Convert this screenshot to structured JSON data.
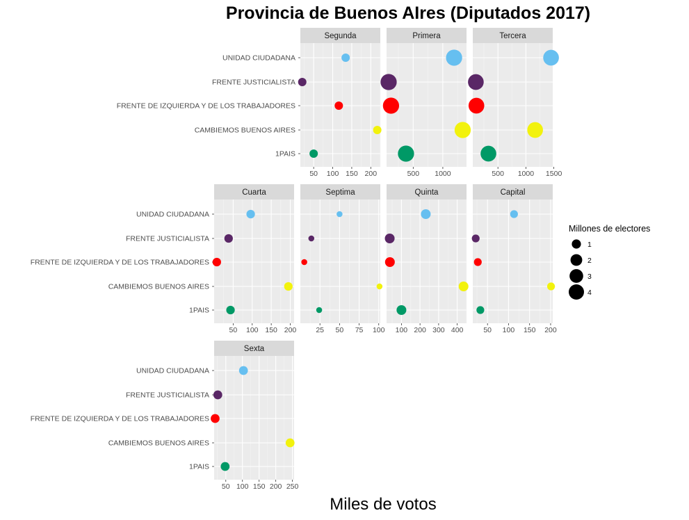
{
  "chart_data": {
    "type": "scatter",
    "title": "Provincia de Buenos AIres (Diputados 2017)",
    "xlabel": "Miles de votos",
    "ylabel": "",
    "categories": [
      "1PAIS",
      "CAMBIEMOS BUENOS AIRES",
      "FRENTE DE IZQUIERDA Y DE LOS TRABAJADORES",
      "FRENTE JUSTICIALISTA",
      "UNIDAD CIUDADANA"
    ],
    "colors": {
      "UNIDAD CIUDADANA": "#66bff0",
      "FRENTE JUSTICIALISTA": "#5a2766",
      "FRENTE DE IZQUIERDA Y DE LOS TRABAJADORES": "#ff0000",
      "CAMBIEMOS BUENOS AIRES": "#f2f20d",
      "1PAIS": "#009966"
    },
    "grid": true,
    "panel_background": "#ebebeb",
    "strip_background": "#d9d9d9",
    "legend": {
      "title": "Millones de electores",
      "position": "right",
      "sizes": [
        1,
        2,
        3,
        4
      ]
    },
    "panels": [
      {
        "name": "Segunda",
        "electores_millones": 0.75,
        "xlim": [
          15,
          225
        ],
        "xticks": [
          50,
          100,
          150,
          200
        ],
        "values": {
          "UNIDAD CIUDADANA": 134,
          "FRENTE JUSTICIALISTA": 20,
          "FRENTE DE IZQUIERDA Y DE LOS TRABAJADORES": 116,
          "CAMBIEMOS BUENOS AIRES": 217,
          "1PAIS": 50
        }
      },
      {
        "name": "Primera",
        "electores_millones": 4.6,
        "xlim": [
          50,
          1400
        ],
        "xticks": [
          500,
          1000
        ],
        "values": {
          "UNIDAD CIUDADANA": 1190,
          "FRENTE JUSTICIALISTA": 85,
          "FRENTE DE IZQUIERDA Y DE LOS TRABAJADORES": 125,
          "CAMBIEMOS BUENOS AIRES": 1335,
          "1PAIS": 378
        }
      },
      {
        "name": "Tercera",
        "electores_millones": 4.3,
        "xlim": [
          50,
          1480
        ],
        "xticks": [
          500,
          1000,
          1500
        ],
        "values": {
          "UNIDAD CIUDADANA": 1450,
          "FRENTE JUSTICIALISTA": 105,
          "FRENTE DE IZQUIERDA Y DE LOS TRABAJADORES": 115,
          "CAMBIEMOS BUENOS AIRES": 1165,
          "1PAIS": 330
        }
      },
      {
        "name": "Cuarta",
        "electores_millones": 0.8,
        "xlim": [
          0,
          210
        ],
        "xticks": [
          50,
          100,
          150,
          200
        ],
        "values": {
          "UNIDAD CIUDADANA": 96,
          "FRENTE JUSTICIALISTA": 38,
          "FRENTE DE IZQUIERDA Y DE LOS TRABAJADORES": 7,
          "CAMBIEMOS BUENOS AIRES": 195,
          "1PAIS": 43
        }
      },
      {
        "name": "Septima",
        "electores_millones": 0.22,
        "xlim": [
          0,
          102
        ],
        "xticks": [
          25,
          50,
          75,
          100
        ],
        "values": {
          "UNIDAD CIUDADANA": 50,
          "FRENTE JUSTICIALISTA": 14,
          "FRENTE DE IZQUIERDA Y DE LOS TRABAJADORES": 5,
          "CAMBIEMOS BUENOS AIRES": 101,
          "1PAIS": 24
        }
      },
      {
        "name": "Quinta",
        "electores_millones": 1.2,
        "xlim": [
          20,
          450
        ],
        "xticks": [
          100,
          200,
          300,
          400
        ],
        "values": {
          "UNIDAD CIUDADANA": 231,
          "FRENTE JUSTICIALISTA": 37,
          "FRENTE DE IZQUIERDA Y DE LOS TRABAJADORES": 38,
          "CAMBIEMOS BUENOS AIRES": 434,
          "1PAIS": 100
        }
      },
      {
        "name": "Capital",
        "electores_millones": 0.6,
        "xlim": [
          15,
          205
        ],
        "xticks": [
          50,
          100,
          150,
          200
        ],
        "values": {
          "UNIDAD CIUDADANA": 113,
          "FRENTE JUSTICIALISTA": 22,
          "FRENTE DE IZQUIERDA Y DE LOS TRABAJADORES": 27,
          "CAMBIEMOS BUENOS AIRES": 201,
          "1PAIS": 33
        }
      },
      {
        "name": "Sexta",
        "electores_millones": 0.9,
        "xlim": [
          15,
          255
        ],
        "xticks": [
          50,
          100,
          150,
          200,
          250
        ],
        "values": {
          "UNIDAD CIUDADANA": 103,
          "FRENTE JUSTICIALISTA": 26,
          "FRENTE DE IZQUIERDA Y DE LOS TRABAJADORES": 18,
          "CAMBIEMOS BUENOS AIRES": 243,
          "1PAIS": 48
        }
      }
    ]
  }
}
